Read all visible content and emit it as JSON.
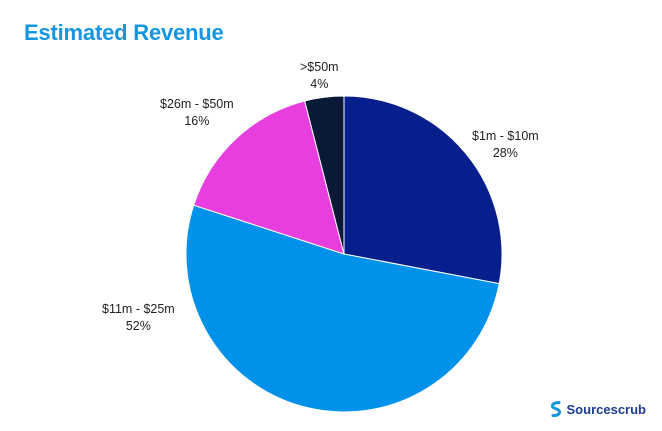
{
  "chart_data": {
    "type": "pie",
    "title": "Estimated Revenue",
    "slices": [
      {
        "label": "$1m - $10m",
        "pct_text": "28%",
        "value": 28,
        "color": "#061f8c"
      },
      {
        "label": "$11m - $25m",
        "pct_text": "52%",
        "value": 52,
        "color": "#0091ea"
      },
      {
        "label": "$26m - $50m",
        "pct_text": "16%",
        "value": 16,
        "color": "#e83ee0"
      },
      {
        "label": ">$50m",
        "pct_text": "4%",
        "value": 4,
        "color": "#0a1a36"
      }
    ]
  },
  "branding": {
    "name": "Sourcescrub",
    "icon": "sourcescrub-logo-icon",
    "color": "#1a3d8f",
    "icon_color": "#1496e0"
  }
}
